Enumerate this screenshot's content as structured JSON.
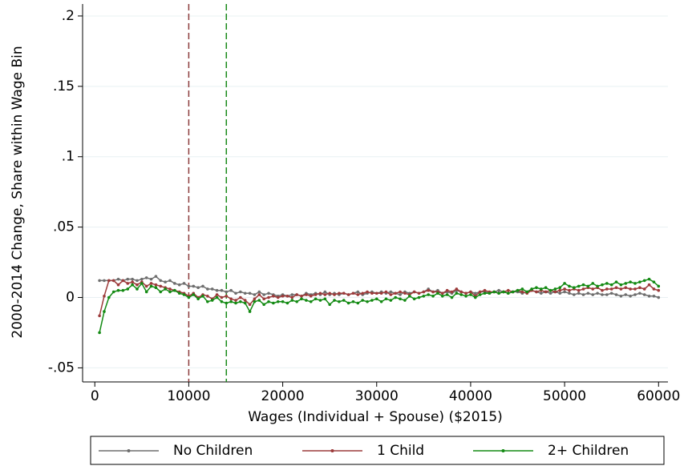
{
  "chart_data": {
    "type": "line",
    "y_label": "2000-2014 Change, Share within Wage Bin",
    "x_label": "Wages (Individual + Spouse) ($2015)",
    "xlim": [
      -1300,
      61000
    ],
    "ylim": [
      -0.06,
      0.2085
    ],
    "xticks": [
      0,
      10000,
      20000,
      30000,
      40000,
      50000,
      60000
    ],
    "yticks": [
      {
        "value": -0.05,
        "label": "-.05"
      },
      0,
      {
        "value": 0.05,
        "label": ".05"
      },
      {
        "value": 0.1,
        "label": ".1"
      },
      {
        "value": 0.15,
        "label": ".15"
      },
      {
        "value": 0.2,
        "label": ".2"
      }
    ],
    "grid": true,
    "legend": "bottom",
    "reference_lines": [
      {
        "x": 10000,
        "color": "#8b3a3a"
      },
      {
        "x": 14000,
        "color": "#1a8a1a"
      }
    ],
    "x": [
      500,
      1000,
      1500,
      2000,
      2500,
      3000,
      3500,
      4000,
      4500,
      5000,
      5500,
      6000,
      6500,
      7000,
      7500,
      8000,
      8500,
      9000,
      9500,
      10000,
      10500,
      11000,
      11500,
      12000,
      12500,
      13000,
      13500,
      14000,
      14500,
      15000,
      15500,
      16000,
      16500,
      17000,
      17500,
      18000,
      18500,
      19000,
      19500,
      20000,
      20500,
      21000,
      21500,
      22000,
      22500,
      23000,
      23500,
      24000,
      24500,
      25000,
      25500,
      26000,
      26500,
      27000,
      27500,
      28000,
      28500,
      29000,
      29500,
      30000,
      30500,
      31000,
      31500,
      32000,
      32500,
      33000,
      33500,
      34000,
      34500,
      35000,
      35500,
      36000,
      36500,
      37000,
      37500,
      38000,
      38500,
      39000,
      39500,
      40000,
      40500,
      41000,
      41500,
      42000,
      42500,
      43000,
      43500,
      44000,
      44500,
      45000,
      45500,
      46000,
      46500,
      47000,
      47500,
      48000,
      48500,
      49000,
      49500,
      50000,
      50500,
      51000,
      51500,
      52000,
      52500,
      53000,
      53500,
      54000,
      54500,
      55000,
      55500,
      56000,
      56500,
      57000,
      57500,
      58000,
      58500,
      59000,
      59500,
      60000
    ],
    "series": [
      {
        "name": "No Children",
        "color": "#6e6e6e",
        "values": [
          0.012,
          0.012,
          0.012,
          0.012,
          0.013,
          0.012,
          0.013,
          0.013,
          0.012,
          0.013,
          0.014,
          0.013,
          0.015,
          0.012,
          0.011,
          0.012,
          0.01,
          0.009,
          0.01,
          0.008,
          0.008,
          0.007,
          0.008,
          0.006,
          0.006,
          0.005,
          0.005,
          0.004,
          0.005,
          0.003,
          0.004,
          0.003,
          0.003,
          0.002,
          0.004,
          0.002,
          0.003,
          0.002,
          0.001,
          0.002,
          0.001,
          0.002,
          0.002,
          0.001,
          0.003,
          0.002,
          0.003,
          0.002,
          0.004,
          0.002,
          0.003,
          0.002,
          0.003,
          0.002,
          0.003,
          0.004,
          0.002,
          0.003,
          0.004,
          0.003,
          0.004,
          0.003,
          0.004,
          0.003,
          0.002,
          0.004,
          0.003,
          0.004,
          0.003,
          0.004,
          0.006,
          0.004,
          0.005,
          0.003,
          0.004,
          0.003,
          0.005,
          0.004,
          0.003,
          0.004,
          0.003,
          0.004,
          0.004,
          0.003,
          0.004,
          0.005,
          0.004,
          0.003,
          0.004,
          0.004,
          0.003,
          0.004,
          0.005,
          0.004,
          0.003,
          0.004,
          0.003,
          0.004,
          0.003,
          0.004,
          0.003,
          0.002,
          0.003,
          0.002,
          0.003,
          0.002,
          0.003,
          0.002,
          0.002,
          0.003,
          0.002,
          0.001,
          0.002,
          0.001,
          0.002,
          0.003,
          0.002,
          0.001,
          0.001,
          0.0
        ]
      },
      {
        "name": "1 Child",
        "color": "#9c3a3a",
        "values": [
          -0.013,
          0.001,
          0.012,
          0.012,
          0.009,
          0.012,
          0.01,
          0.011,
          0.009,
          0.011,
          0.008,
          0.01,
          0.009,
          0.008,
          0.007,
          0.006,
          0.005,
          0.004,
          0.003,
          0.001,
          0.003,
          0.0,
          0.002,
          0.001,
          -0.001,
          0.002,
          0.0,
          0.001,
          -0.001,
          -0.002,
          0.0,
          -0.002,
          -0.005,
          -0.001,
          0.002,
          -0.001,
          0.0,
          0.001,
          0.0,
          0.001,
          0.001,
          0.0,
          0.002,
          0.001,
          0.002,
          0.001,
          0.002,
          0.003,
          0.002,
          0.003,
          0.002,
          0.003,
          0.003,
          0.002,
          0.003,
          0.002,
          0.003,
          0.004,
          0.003,
          0.003,
          0.003,
          0.004,
          0.002,
          0.003,
          0.004,
          0.003,
          0.002,
          0.004,
          0.003,
          0.004,
          0.005,
          0.004,
          0.004,
          0.003,
          0.005,
          0.004,
          0.006,
          0.004,
          0.003,
          0.004,
          0.001,
          0.004,
          0.005,
          0.004,
          0.004,
          0.003,
          0.004,
          0.005,
          0.004,
          0.005,
          0.004,
          0.003,
          0.005,
          0.004,
          0.005,
          0.004,
          0.005,
          0.004,
          0.005,
          0.006,
          0.005,
          0.006,
          0.005,
          0.006,
          0.007,
          0.006,
          0.007,
          0.005,
          0.006,
          0.006,
          0.007,
          0.006,
          0.007,
          0.006,
          0.006,
          0.007,
          0.006,
          0.009,
          0.006,
          0.005
        ]
      },
      {
        "name": "2+ Children",
        "color": "#138a13",
        "values": [
          -0.025,
          -0.01,
          0.0,
          0.004,
          0.005,
          0.005,
          0.006,
          0.009,
          0.006,
          0.01,
          0.004,
          0.008,
          0.007,
          0.004,
          0.006,
          0.004,
          0.005,
          0.003,
          0.002,
          0.0,
          0.002,
          -0.001,
          0.001,
          -0.003,
          -0.002,
          0.0,
          -0.003,
          -0.004,
          -0.003,
          -0.004,
          -0.003,
          -0.004,
          -0.01,
          -0.003,
          -0.002,
          -0.005,
          -0.003,
          -0.004,
          -0.003,
          -0.003,
          -0.004,
          -0.002,
          -0.003,
          -0.001,
          -0.002,
          -0.003,
          -0.001,
          -0.002,
          -0.001,
          -0.005,
          -0.002,
          -0.003,
          -0.002,
          -0.004,
          -0.003,
          -0.004,
          -0.002,
          -0.003,
          -0.002,
          -0.001,
          -0.003,
          -0.001,
          -0.002,
          0.0,
          -0.001,
          -0.002,
          0.001,
          -0.001,
          0.0,
          0.001,
          0.002,
          0.001,
          0.003,
          0.001,
          0.002,
          0.0,
          0.003,
          0.002,
          0.001,
          0.002,
          0.0,
          0.002,
          0.003,
          0.003,
          0.004,
          0.003,
          0.004,
          0.003,
          0.004,
          0.005,
          0.006,
          0.004,
          0.006,
          0.007,
          0.006,
          0.007,
          0.005,
          0.006,
          0.007,
          0.01,
          0.008,
          0.007,
          0.008,
          0.009,
          0.008,
          0.01,
          0.008,
          0.009,
          0.01,
          0.009,
          0.011,
          0.009,
          0.01,
          0.011,
          0.01,
          0.011,
          0.012,
          0.013,
          0.011,
          0.008
        ]
      }
    ]
  }
}
